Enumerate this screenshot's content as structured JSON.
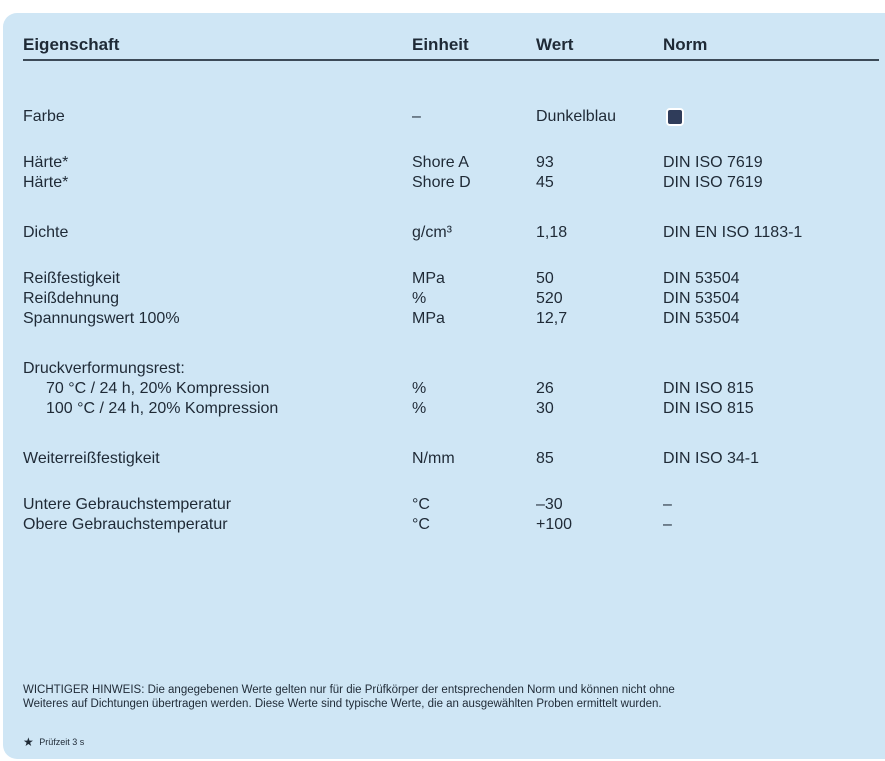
{
  "header": {
    "col_property": "Eigenschaft",
    "col_unit": "Einheit",
    "col_value": "Wert",
    "col_norm": "Norm"
  },
  "rows": [
    {
      "name": "Farbe",
      "unit": "–",
      "value": "Dunkelblau",
      "norm": "",
      "swatch_color": "#2f3c5a"
    },
    {
      "name": "Härte*",
      "unit": "Shore A",
      "value": "93",
      "norm": "DIN ISO 7619"
    },
    {
      "name": "Härte*",
      "unit": "Shore D",
      "value": "45",
      "norm": "DIN ISO 7619"
    },
    {
      "name": "Dichte",
      "unit": "g/cm³",
      "value": "1,18",
      "norm": "DIN EN ISO 1183-1"
    },
    {
      "name": "Reißfestigkeit",
      "unit": "MPa",
      "value": "50",
      "norm": "DIN 53504"
    },
    {
      "name": "Reißdehnung",
      "unit": "%",
      "value": "520",
      "norm": "DIN 53504"
    },
    {
      "name": "Spannungswert 100%",
      "unit": "MPa",
      "value": "12,7",
      "norm": "DIN 53504"
    },
    {
      "name": "Druckverformungsrest:",
      "unit": "",
      "value": "",
      "norm": ""
    },
    {
      "name": "70 °C / 24 h, 20% Kompression",
      "unit": "%",
      "value": "26",
      "norm": "DIN ISO 815"
    },
    {
      "name": "100 °C / 24 h, 20% Kompression",
      "unit": "%",
      "value": "30",
      "norm": "DIN ISO 815"
    },
    {
      "name": "Weiterreißfestigkeit",
      "unit": "N/mm",
      "value": "85",
      "norm": "DIN ISO 34-1"
    },
    {
      "name": "Untere Gebrauchstemperatur",
      "unit": "°C",
      "value": "–30",
      "norm": "–"
    },
    {
      "name": "Obere Gebrauchstemperatur",
      "unit": "°C",
      "value": "+100",
      "norm": "–"
    }
  ],
  "note": {
    "line1": "WICHTIGER HINWEIS: Die angegebenen Werte gelten nur für die Prüfkörper der entsprechenden Norm und können nicht ohne",
    "line2": "Weiteres auf Dichtungen übertragen werden. Diese Werte sind typische Werte, die an ausgewählten Proben ermittelt wurden."
  },
  "footnote": {
    "symbol": "★",
    "text": "Prüfzeit 3 s"
  }
}
